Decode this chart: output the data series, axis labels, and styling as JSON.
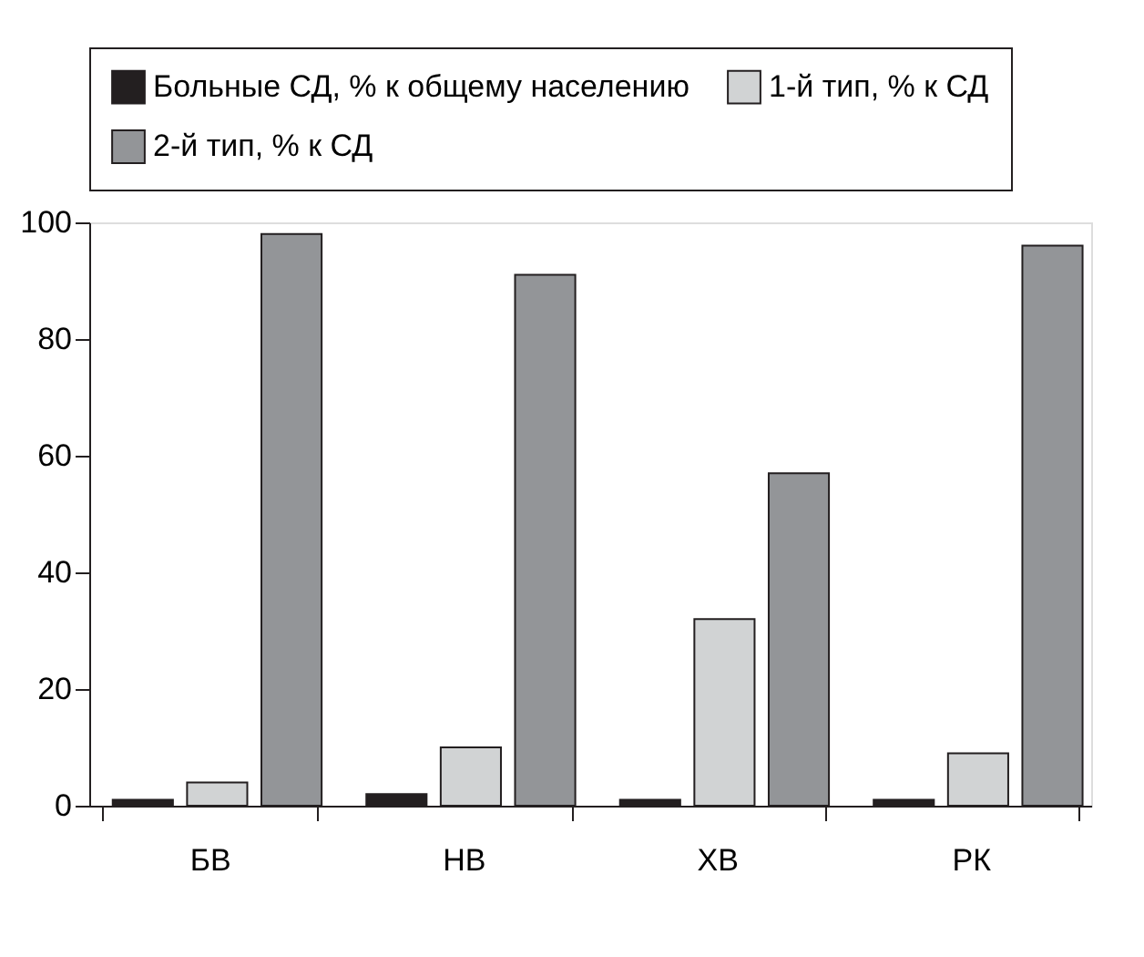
{
  "chart_data": {
    "type": "bar",
    "categories": [
      "БВ",
      "НВ",
      "ХВ",
      "РК"
    ],
    "series": [
      {
        "name": "Больные СД, % к общему населению",
        "color": "#231f20",
        "values": [
          1,
          2,
          1,
          1
        ]
      },
      {
        "name": "1-й тип, % к СД",
        "color": "#d1d3d4",
        "values": [
          4,
          10,
          32,
          9
        ]
      },
      {
        "name": "2-й тип, % к СД",
        "color": "#939598",
        "values": [
          98,
          91,
          57,
          96
        ]
      }
    ],
    "ylim": [
      0,
      100
    ],
    "yticks": [
      0,
      20,
      40,
      60,
      80,
      100
    ],
    "grid": false,
    "legend": "top"
  }
}
